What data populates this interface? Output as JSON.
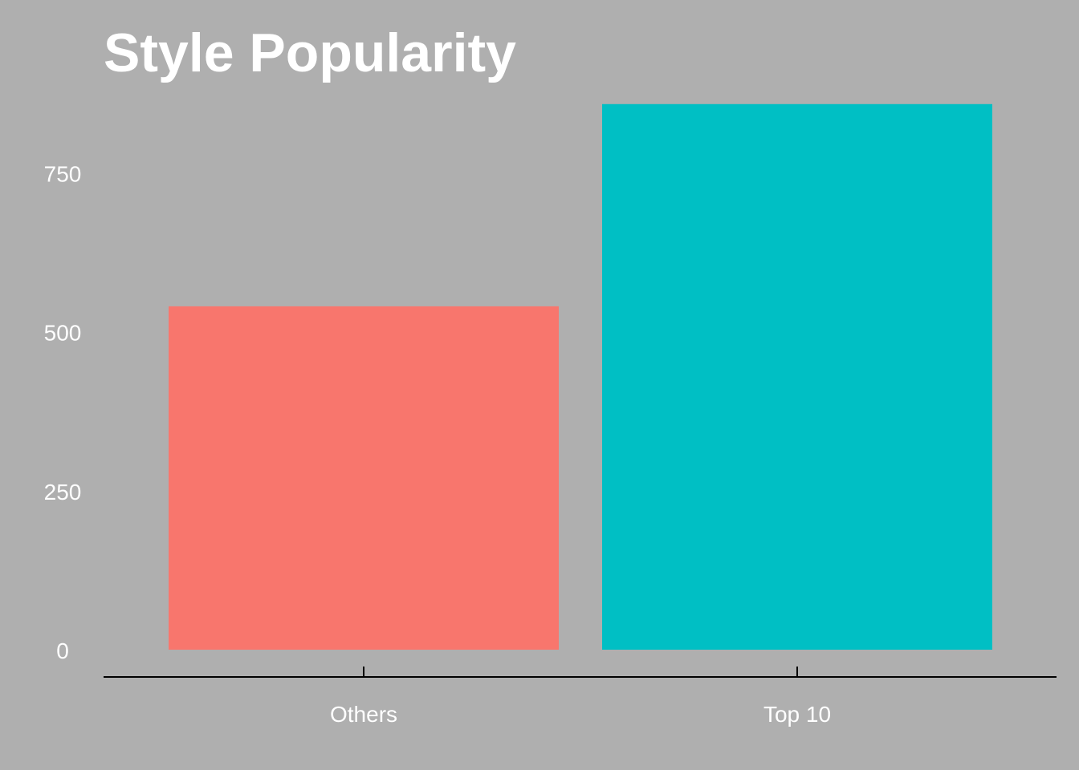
{
  "chart_data": {
    "type": "bar",
    "title": "Style Popularity",
    "xlabel": "",
    "ylabel": "",
    "categories": [
      "Others",
      "Top 10"
    ],
    "values": [
      540,
      858
    ],
    "ylim": [
      0,
      900
    ],
    "yticks": [
      0,
      250,
      500,
      750
    ],
    "ytick_labels": [
      "0",
      "250",
      "500",
      "750"
    ],
    "colors": [
      "#f8766d",
      "#00bfc4"
    ],
    "background": "#afafaf",
    "grid": false,
    "legend": "none"
  }
}
